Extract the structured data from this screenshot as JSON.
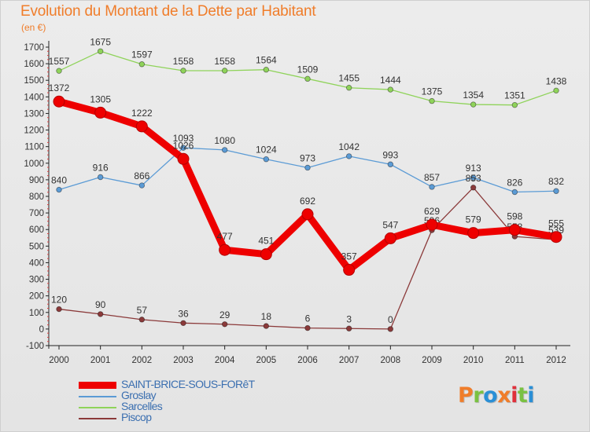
{
  "header": {
    "title": "Evolution du Montant de la Dette par Habitant",
    "subtitle": "(en €)"
  },
  "brand": {
    "text": "Proxiti",
    "letter_colors": [
      "#f07d2a",
      "#7ac142",
      "#2a8fd6",
      "#f07d2a",
      "#e0303b",
      "#7ac142",
      "#2a8fd6"
    ]
  },
  "chart_data": {
    "type": "line",
    "title": "Evolution du Montant de la Dette par Habitant",
    "subtitle": "(en €)",
    "x": [
      "2000",
      "2001",
      "2002",
      "2003",
      "2004",
      "2005",
      "2006",
      "2007",
      "2008",
      "2009",
      "2010",
      "2011",
      "2012"
    ],
    "ylim": [
      -100,
      1700
    ],
    "yticks": [
      -100,
      0,
      100,
      200,
      300,
      400,
      500,
      600,
      700,
      800,
      900,
      1000,
      1100,
      1200,
      1300,
      1400,
      1500,
      1600,
      1700
    ],
    "grid": false,
    "legend_position": "bottom-left",
    "series": [
      {
        "name": "SAINT-BRICE-SOUS-FORêT",
        "color": "#ee0000",
        "highlight": true,
        "values": [
          1372,
          1305,
          1222,
          1026,
          477,
          451,
          692,
          357,
          547,
          629,
          579,
          598,
          555
        ]
      },
      {
        "name": "Groslay",
        "color": "#5b9bd5",
        "highlight": false,
        "values": [
          840,
          916,
          866,
          1093,
          1080,
          1024,
          973,
          1042,
          993,
          857,
          913,
          826,
          832
        ]
      },
      {
        "name": "Sarcelles",
        "color": "#8fd35a",
        "highlight": false,
        "values": [
          1557,
          1675,
          1597,
          1558,
          1558,
          1564,
          1509,
          1455,
          1444,
          1375,
          1354,
          1351,
          1438
        ]
      },
      {
        "name": "Piscop",
        "color": "#8b3a3a",
        "highlight": false,
        "values": [
          120,
          90,
          57,
          36,
          29,
          18,
          6,
          3,
          0,
          596,
          853,
          558,
          539
        ]
      }
    ]
  },
  "legend": {
    "items": [
      {
        "label": "SAINT-BRICE-SOUS-FORêT",
        "color": "#ee0000"
      },
      {
        "label": "Groslay",
        "color": "#5b9bd5"
      },
      {
        "label": "Sarcelles",
        "color": "#8fd35a"
      },
      {
        "label": "Piscop",
        "color": "#8b3a3a"
      }
    ]
  }
}
